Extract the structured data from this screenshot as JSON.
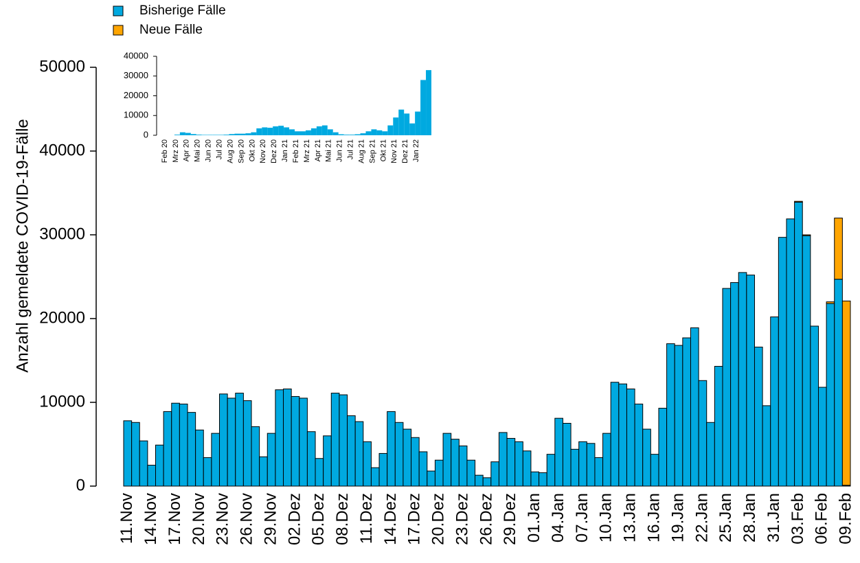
{
  "chart_data": [
    {
      "type": "stacked_bar",
      "ylabel": "Anzahl gemeldete COVID-19-Fälle",
      "ylim": [
        0,
        50000
      ],
      "yticks": [
        0,
        10000,
        20000,
        30000,
        40000,
        50000
      ],
      "legend": "top-left",
      "categories": [
        "11.Nov",
        null,
        null,
        "14.Nov",
        null,
        null,
        "17.Nov",
        null,
        null,
        "20.Nov",
        null,
        null,
        "23.Nov",
        null,
        null,
        "26.Nov",
        null,
        null,
        "29.Nov",
        null,
        null,
        "02.Dez",
        null,
        null,
        "05.Dez",
        null,
        null,
        "08.Dez",
        null,
        null,
        "11.Dez",
        null,
        null,
        "14.Dez",
        null,
        null,
        "17.Dez",
        null,
        null,
        "20.Dez",
        null,
        null,
        "23.Dez",
        null,
        null,
        "26.Dez",
        null,
        null,
        "29.Dez",
        null,
        null,
        "01.Jan",
        null,
        null,
        "04.Jan",
        null,
        null,
        "07.Jan",
        null,
        null,
        "10.Jan",
        null,
        null,
        "13.Jan",
        null,
        null,
        "16.Jan",
        null,
        null,
        "19.Jan",
        null,
        null,
        "22.Jan",
        null,
        null,
        "25.Jan",
        null,
        null,
        "28.Jan",
        null,
        null,
        "31.Jan",
        null,
        null,
        "03.Feb",
        null,
        null,
        "06.Feb",
        null,
        null,
        "09.Feb"
      ],
      "series": [
        {
          "name": "Bisherige Fälle",
          "color": "#00a9e0",
          "values": [
            7800,
            7600,
            5400,
            2500,
            4900,
            8900,
            9900,
            9800,
            8800,
            6700,
            3400,
            6300,
            11000,
            10500,
            11100,
            10200,
            7100,
            3500,
            6300,
            11500,
            11600,
            10700,
            10500,
            6500,
            3300,
            6000,
            11100,
            10900,
            8400,
            7700,
            5300,
            2200,
            3900,
            8900,
            7600,
            6800,
            5800,
            4100,
            1800,
            3100,
            6300,
            5600,
            4800,
            3100,
            1300,
            1000,
            2900,
            6400,
            5700,
            5300,
            4200,
            1700,
            1600,
            3800,
            8100,
            7500,
            4400,
            5300,
            5100,
            3400,
            6300,
            12400,
            12200,
            11600,
            9800,
            6800,
            3800,
            9300,
            17000,
            16800,
            17700,
            18900,
            12600,
            7600,
            14300,
            23600,
            24300,
            25500,
            25200,
            16600,
            9600,
            20200,
            29700,
            31900,
            33900,
            29900,
            19100,
            11800,
            21800,
            24700,
            100
          ]
        },
        {
          "name": "Neue Fälle",
          "color": "#ffa500",
          "values": [
            0,
            0,
            0,
            0,
            0,
            0,
            0,
            0,
            0,
            0,
            0,
            0,
            0,
            0,
            0,
            0,
            0,
            0,
            0,
            0,
            0,
            0,
            0,
            0,
            0,
            0,
            0,
            0,
            0,
            0,
            0,
            0,
            0,
            0,
            0,
            0,
            0,
            0,
            0,
            0,
            0,
            0,
            0,
            0,
            0,
            0,
            0,
            0,
            0,
            0,
            0,
            0,
            0,
            0,
            0,
            0,
            0,
            0,
            0,
            0,
            0,
            0,
            0,
            0,
            0,
            0,
            0,
            0,
            0,
            0,
            0,
            0,
            0,
            0,
            0,
            0,
            0,
            0,
            0,
            0,
            0,
            0,
            0,
            0,
            100,
            100,
            0,
            0,
            200,
            7300,
            22000
          ]
        }
      ]
    },
    {
      "type": "inset_bar",
      "ylim": [
        0,
        40000
      ],
      "yticks": [
        0,
        10000,
        20000,
        30000,
        40000
      ],
      "color": "#00a9e0",
      "categories": [
        "Feb 20",
        null,
        "Mrz 20",
        null,
        "Apr 20",
        null,
        "Mai 20",
        null,
        "Jun 20",
        null,
        "Jul 20",
        null,
        "Aug 20",
        null,
        "Sep 20",
        null,
        "Okt 20",
        null,
        "Nov 20",
        null,
        "Dez 20",
        null,
        "Jan 21",
        null,
        "Feb 21",
        null,
        "Mrz 21",
        null,
        "Apr 21",
        null,
        "Mai 21",
        null,
        "Jun 21",
        null,
        "Jul 21",
        null,
        "Aug 21",
        null,
        "Sep 21",
        null,
        "Okt 21",
        null,
        "Nov 21",
        null,
        "Dez 21",
        null,
        "Jan 22",
        null,
        null
      ],
      "values": [
        0,
        0,
        300,
        1500,
        1200,
        600,
        300,
        200,
        200,
        200,
        200,
        300,
        600,
        800,
        800,
        1000,
        1500,
        3500,
        4000,
        3800,
        4500,
        4800,
        4000,
        3000,
        2000,
        2000,
        2500,
        3500,
        4500,
        5000,
        3000,
        1500,
        500,
        300,
        300,
        500,
        1000,
        2000,
        3000,
        2500,
        2000,
        5000,
        9000,
        13000,
        11000,
        6000,
        12000,
        28000,
        33000
      ]
    }
  ]
}
